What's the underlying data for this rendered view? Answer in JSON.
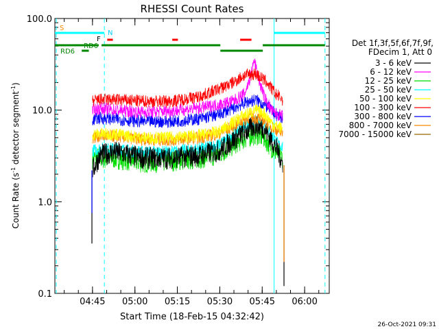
{
  "chart_data": {
    "type": "line",
    "title": "RHESSI Count Rates",
    "xlabel": "Start Time (18-Feb-15 04:32:42)",
    "ylabel_parts": [
      "Count Rate (s",
      "-1",
      " detector segment",
      "-1",
      ")"
    ],
    "yscale": "log",
    "ylim": [
      0.1,
      100.0
    ],
    "xlim_minutes": [
      -1,
      96
    ],
    "x_tick_labels": [
      "04:45",
      "05:00",
      "05:15",
      "05:30",
      "05:45",
      "06:00"
    ],
    "x_tick_minutes": [
      12.3,
      27.3,
      42.3,
      57.3,
      72.3,
      87.3
    ],
    "y_tick_labels": [
      "0.1",
      "1.0",
      "10.0",
      "100.0"
    ],
    "y_tick_values": [
      0.1,
      1.0,
      10.0,
      100.0
    ],
    "legend_header": [
      "Det 1f,3f,5f,6f,7f,9f,",
      "FDecim 1, Att 0"
    ],
    "legend_position": "right",
    "series": [
      {
        "name": "3 - 6 keV",
        "color": "#000000",
        "points": [
          [
            12.3,
            2.2
          ],
          [
            15,
            3.2
          ],
          [
            20,
            3.5
          ],
          [
            30,
            3.0
          ],
          [
            40,
            3.0
          ],
          [
            50,
            3.2
          ],
          [
            57,
            3.6
          ],
          [
            65,
            5.5
          ],
          [
            70,
            6.8
          ],
          [
            73,
            6.3
          ],
          [
            76,
            4.5
          ],
          [
            78,
            3.5
          ],
          [
            79.6,
            2.5
          ]
        ]
      },
      {
        "name": "6 - 12 keV",
        "color": "#ff00ff",
        "points": [
          [
            12.3,
            10.0
          ],
          [
            15,
            10.5
          ],
          [
            20,
            10.0
          ],
          [
            30,
            9.5
          ],
          [
            40,
            9.8
          ],
          [
            50,
            10.5
          ],
          [
            57,
            11.5
          ],
          [
            62,
            12.5
          ],
          [
            66,
            15.0
          ],
          [
            68,
            22.0
          ],
          [
            69.5,
            35.0
          ],
          [
            71,
            22.0
          ],
          [
            73,
            14.0
          ],
          [
            76,
            9.5
          ],
          [
            79.6,
            8.5
          ]
        ]
      },
      {
        "name": "12 - 25 keV",
        "color": "#00dd00",
        "points": [
          [
            12.3,
            3.0
          ],
          [
            15,
            3.0
          ],
          [
            20,
            3.0
          ],
          [
            30,
            2.7
          ],
          [
            40,
            2.8
          ],
          [
            50,
            3.0
          ],
          [
            57,
            3.3
          ],
          [
            65,
            4.8
          ],
          [
            70,
            5.5
          ],
          [
            73,
            5.0
          ],
          [
            76,
            3.8
          ],
          [
            78,
            3.2
          ],
          [
            79.6,
            3.0
          ]
        ]
      },
      {
        "name": "25 - 50 keV",
        "color": "#00ffff",
        "points": [
          [
            12.3,
            3.6
          ],
          [
            15,
            3.8
          ],
          [
            20,
            3.8
          ],
          [
            30,
            3.5
          ],
          [
            40,
            3.5
          ],
          [
            50,
            3.8
          ],
          [
            57,
            4.2
          ],
          [
            65,
            6.5
          ],
          [
            70,
            7.5
          ],
          [
            73,
            7.0
          ],
          [
            76,
            5.2
          ],
          [
            78,
            4.2
          ],
          [
            79.6,
            4.0
          ]
        ]
      },
      {
        "name": "50 - 100 keV",
        "color": "#ffff00",
        "points": [
          [
            12.3,
            5.4
          ],
          [
            15,
            5.5
          ],
          [
            20,
            5.5
          ],
          [
            30,
            5.0
          ],
          [
            40,
            5.0
          ],
          [
            50,
            5.3
          ],
          [
            57,
            5.8
          ],
          [
            65,
            8.5
          ],
          [
            70,
            10.0
          ],
          [
            73,
            9.2
          ],
          [
            76,
            7.0
          ],
          [
            79.6,
            6.2
          ]
        ]
      },
      {
        "name": "100 - 300 keV",
        "color": "#ff0000",
        "points": [
          [
            12.3,
            12.5
          ],
          [
            15,
            13.0
          ],
          [
            20,
            13.0
          ],
          [
            30,
            12.5
          ],
          [
            40,
            12.5
          ],
          [
            50,
            14.0
          ],
          [
            57,
            17.0
          ],
          [
            62,
            20.0
          ],
          [
            66,
            24.0
          ],
          [
            70,
            25.0
          ],
          [
            74,
            20.0
          ],
          [
            77,
            15.0
          ],
          [
            79.6,
            13.0
          ]
        ]
      },
      {
        "name": "300 - 800 keV",
        "color": "#0000ff",
        "points": [
          [
            12.3,
            7.8
          ],
          [
            15,
            8.2
          ],
          [
            20,
            8.0
          ],
          [
            30,
            7.5
          ],
          [
            40,
            7.5
          ],
          [
            50,
            8.0
          ],
          [
            57,
            9.0
          ],
          [
            62,
            10.5
          ],
          [
            66,
            12.0
          ],
          [
            70,
            13.0
          ],
          [
            74,
            11.0
          ],
          [
            77,
            9.0
          ],
          [
            79.6,
            8.2
          ]
        ]
      },
      {
        "name": "800 - 7000 keV",
        "color": "#ff8800",
        "points": [
          [
            12.3,
            5.0
          ],
          [
            15,
            5.2
          ],
          [
            20,
            5.2
          ],
          [
            30,
            4.8
          ],
          [
            40,
            4.7
          ],
          [
            50,
            5.0
          ],
          [
            57,
            5.5
          ],
          [
            63,
            7.0
          ],
          [
            68,
            8.5
          ],
          [
            72,
            8.0
          ],
          [
            76,
            6.5
          ],
          [
            79.6,
            5.5
          ]
        ]
      },
      {
        "name": "7000 - 15000 keV",
        "color": "#996600",
        "points": []
      }
    ],
    "drop_points": [
      {
        "x": 12.1,
        "value": 0.35,
        "color": "#000000"
      },
      {
        "x": 12.1,
        "value": 0.75,
        "color": "#0000ff"
      },
      {
        "x": 80.0,
        "value": 0.12,
        "color": "#000000"
      },
      {
        "x": 80.0,
        "value": 0.22,
        "color": "#ff8800"
      }
    ],
    "markers": [
      {
        "label": "S",
        "color": "#ff8800"
      },
      {
        "label": "N",
        "color": "#00ccff"
      },
      {
        "label": "F",
        "color": "#000000"
      },
      {
        "label": "RD6",
        "color": "#008800"
      },
      {
        "label": "RD6",
        "color": "#008800"
      }
    ],
    "state_bars": [
      {
        "name": "saa",
        "color": "#00ffff",
        "level": 1,
        "ranges": [
          [
            -1,
            16.5
          ],
          [
            76.5,
            94.5
          ]
        ]
      },
      {
        "name": "flare",
        "color": "#ff0000",
        "level": 2,
        "ranges": [
          [
            17.5,
            19.5
          ],
          [
            40.5,
            42.5
          ],
          [
            64.5,
            68.5
          ]
        ]
      },
      {
        "name": "rd6",
        "color": "#008800",
        "level": 3,
        "ranges": [
          [
            -1,
            14.5
          ],
          [
            15.5,
            57.5
          ],
          [
            72.5,
            94.5
          ]
        ]
      },
      {
        "name": "rd6-low",
        "color": "#008800",
        "level": 4,
        "ranges": [
          [
            8.5,
            11.0
          ],
          [
            57.5,
            72.5
          ]
        ]
      }
    ],
    "vlines": [
      {
        "x": -0.5,
        "color": "#00ffff",
        "dashed": true
      },
      {
        "x": 16.5,
        "color": "#00ffff",
        "dashed": true
      },
      {
        "x": 76.5,
        "color": "#00ffff",
        "dashed": false
      },
      {
        "x": 94.5,
        "color": "#00ffff",
        "dashed": true
      }
    ]
  },
  "footer": {
    "date": "26-Oct-2021 09:31"
  }
}
